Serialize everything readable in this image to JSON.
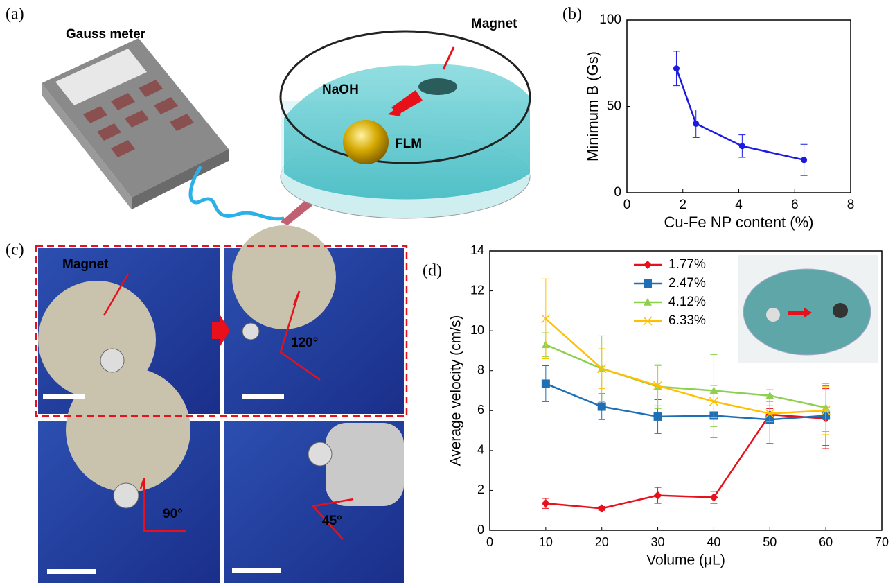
{
  "panels": {
    "a": "(a)",
    "b": "(b)",
    "c": "(c)",
    "d": "(d)"
  },
  "illustration_a": {
    "gauss_meter": "Gauss meter",
    "magnet": "Magnet",
    "naoh": "NaOH",
    "flm": "FLM"
  },
  "photos_c": {
    "magnet": "Magnet",
    "angles": [
      "120°",
      "90°",
      "45°"
    ]
  },
  "chart_data": [
    {
      "type": "line",
      "xlabel": "Cu-Fe NP content (%)",
      "ylabel": "Minimum B (Gs)",
      "x": [
        1.77,
        2.47,
        4.12,
        6.33
      ],
      "series": [
        {
          "color": "#1a1ae0",
          "marker": "circle",
          "values": [
            72,
            40,
            27,
            19
          ],
          "errors": [
            10,
            8,
            6.5,
            9
          ]
        }
      ],
      "xlim": [
        0,
        8
      ],
      "xticks": [
        0,
        2,
        4,
        6,
        8
      ],
      "ylim": [
        0,
        100
      ],
      "yticks": [
        0,
        50,
        100
      ]
    },
    {
      "type": "line",
      "xlabel": "Volume  (μL)",
      "ylabel": "Average velocity (cm/s)",
      "x": [
        10,
        20,
        30,
        40,
        50,
        60
      ],
      "series": [
        {
          "name": "1.77%",
          "color": "#e8101a",
          "marker": "diamond",
          "values": [
            1.35,
            1.1,
            1.75,
            1.65,
            5.8,
            5.6
          ],
          "errors": [
            0.25,
            0.1,
            0.4,
            0.3,
            0.3,
            1.5
          ]
        },
        {
          "name": "2.47%",
          "color": "#1f6fb5",
          "marker": "square",
          "values": [
            7.35,
            6.2,
            5.7,
            5.75,
            5.55,
            5.75
          ],
          "errors": [
            0.9,
            0.65,
            0.85,
            1.1,
            1.2,
            1.5
          ]
        },
        {
          "name": "4.12%",
          "color": "#8fcf4f",
          "marker": "triangle",
          "values": [
            9.3,
            8.1,
            7.2,
            7.0,
            6.75,
            6.15
          ],
          "errors": [
            0.6,
            1.65,
            1.1,
            1.8,
            0.3,
            1.2
          ]
        },
        {
          "name": "6.33%",
          "color": "#ffc000",
          "marker": "x",
          "values": [
            10.6,
            8.1,
            7.25,
            6.45,
            5.85,
            6.0
          ],
          "errors": [
            2.0,
            1.0,
            1.0,
            0.8,
            0.4,
            1.2
          ]
        }
      ],
      "xlim": [
        0,
        70
      ],
      "xticks": [
        0,
        10,
        20,
        30,
        40,
        50,
        60,
        70
      ],
      "ylim": [
        0,
        14
      ],
      "yticks": [
        0,
        2,
        4,
        6,
        8,
        10,
        12,
        14
      ]
    }
  ]
}
